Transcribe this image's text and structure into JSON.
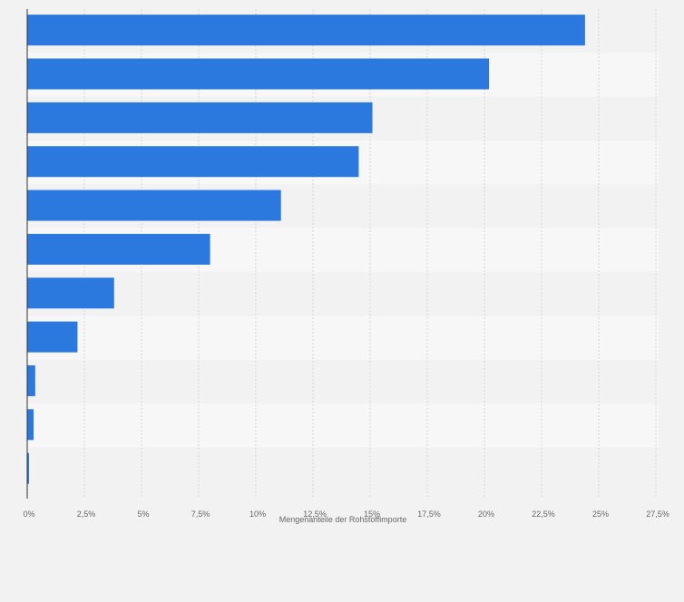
{
  "chart_data": {
    "type": "bar",
    "orientation": "horizontal",
    "categories": [
      "",
      "",
      "",
      "",
      "",
      "",
      "",
      "",
      "",
      "",
      ""
    ],
    "values": [
      24.4,
      20.2,
      15.1,
      14.5,
      11.1,
      8.0,
      3.8,
      2.2,
      0.35,
      0.28,
      0.08
    ],
    "xlabel": "Mengenanteile der Rohstoffimporte",
    "ylabel": "",
    "xlim": [
      0,
      27.5
    ],
    "tick_labels": [
      "0%",
      "2,5%",
      "5%",
      "7,5%",
      "10%",
      "12,5%",
      "15%",
      "17,5%",
      "20%",
      "22,5%",
      "25%",
      "27,5%"
    ],
    "grid": true,
    "legend": "none",
    "colors": {
      "bar": "#2b79de",
      "band_dark": "#f2f2f2",
      "band_light": "#f7f7f7",
      "grid": "#d5d5d5",
      "axis": "#333333",
      "text": "#666666"
    }
  }
}
